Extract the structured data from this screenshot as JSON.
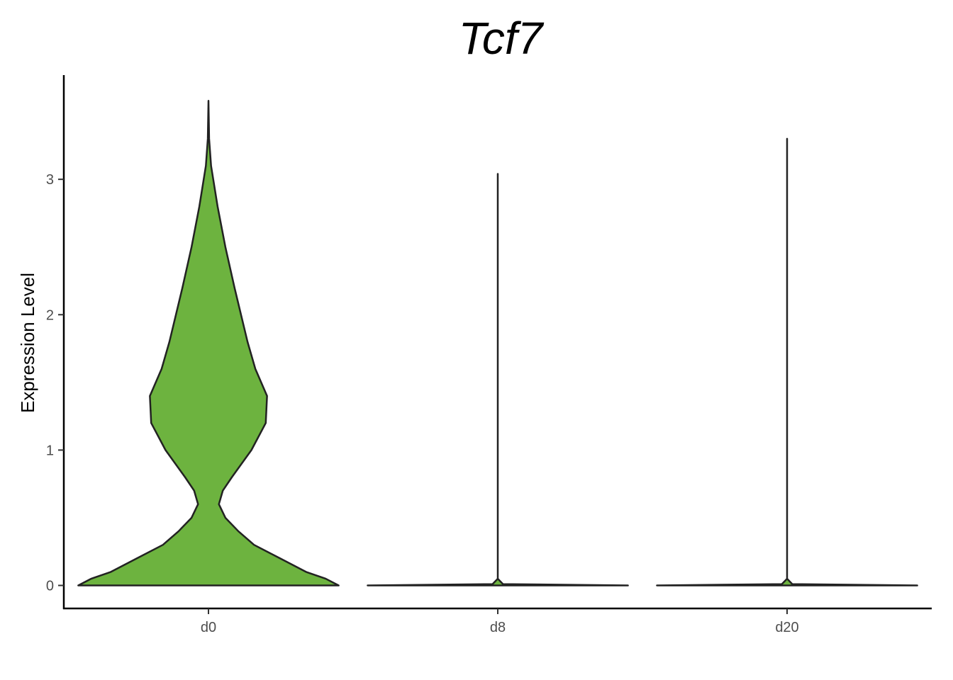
{
  "chart_data": {
    "type": "violin",
    "title": "Tcf7",
    "xlabel": "",
    "ylabel": "Expression Level",
    "ylim": [
      -0.17,
      3.77
    ],
    "yticks": [
      0,
      1,
      2,
      3
    ],
    "categories": [
      "d0",
      "d8",
      "d20"
    ],
    "fill_colors": [
      "#6db33f",
      "#6db33f",
      "#6db33f"
    ],
    "outline_color": "#222222",
    "grid": false,
    "legend": "none",
    "series": [
      {
        "category": "d0",
        "max": 3.58,
        "density": [
          [
            0.0,
            1.0
          ],
          [
            0.05,
            0.9
          ],
          [
            0.1,
            0.75
          ],
          [
            0.2,
            0.55
          ],
          [
            0.3,
            0.35
          ],
          [
            0.4,
            0.23
          ],
          [
            0.5,
            0.13
          ],
          [
            0.6,
            0.08
          ],
          [
            0.7,
            0.11
          ],
          [
            0.8,
            0.18
          ],
          [
            1.0,
            0.33
          ],
          [
            1.2,
            0.44
          ],
          [
            1.4,
            0.45
          ],
          [
            1.6,
            0.36
          ],
          [
            1.8,
            0.3
          ],
          [
            2.0,
            0.25
          ],
          [
            2.2,
            0.2
          ],
          [
            2.5,
            0.13
          ],
          [
            2.8,
            0.07
          ],
          [
            3.1,
            0.02
          ],
          [
            3.3,
            0.005
          ],
          [
            3.58,
            0.0
          ]
        ]
      },
      {
        "category": "d8",
        "max": 3.04,
        "density": [
          [
            0.0,
            1.0
          ],
          [
            0.01,
            0.04
          ],
          [
            0.05,
            0.0
          ],
          [
            3.04,
            0.0
          ]
        ]
      },
      {
        "category": "d20",
        "max": 3.3,
        "density": [
          [
            0.0,
            1.0
          ],
          [
            0.01,
            0.04
          ],
          [
            0.05,
            0.0
          ],
          [
            3.3,
            0.0
          ]
        ]
      }
    ]
  }
}
